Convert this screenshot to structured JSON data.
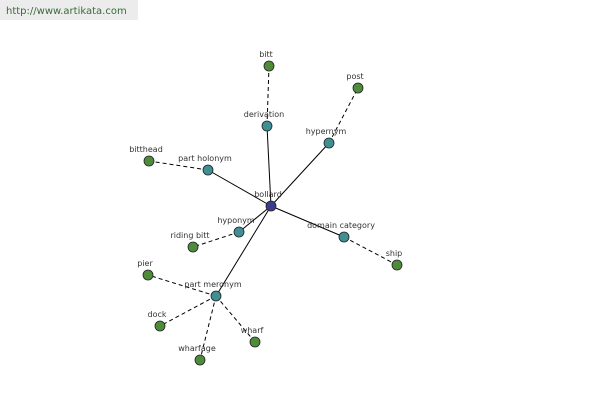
{
  "watermark": "http://www.artikata.com",
  "graph": {
    "center": "bollard",
    "relations": [
      {
        "label": "derivation",
        "targets": [
          "bitt"
        ]
      },
      {
        "label": "hypernym",
        "targets": [
          "post"
        ]
      },
      {
        "label": "part holonym",
        "targets": [
          "bitthead"
        ]
      },
      {
        "label": "hyponym",
        "targets": [
          "riding bitt"
        ]
      },
      {
        "label": "domain category",
        "targets": [
          "ship"
        ]
      },
      {
        "label": "part meronym",
        "targets": [
          "pier",
          "dock",
          "wharfage",
          "wharf"
        ]
      }
    ]
  }
}
